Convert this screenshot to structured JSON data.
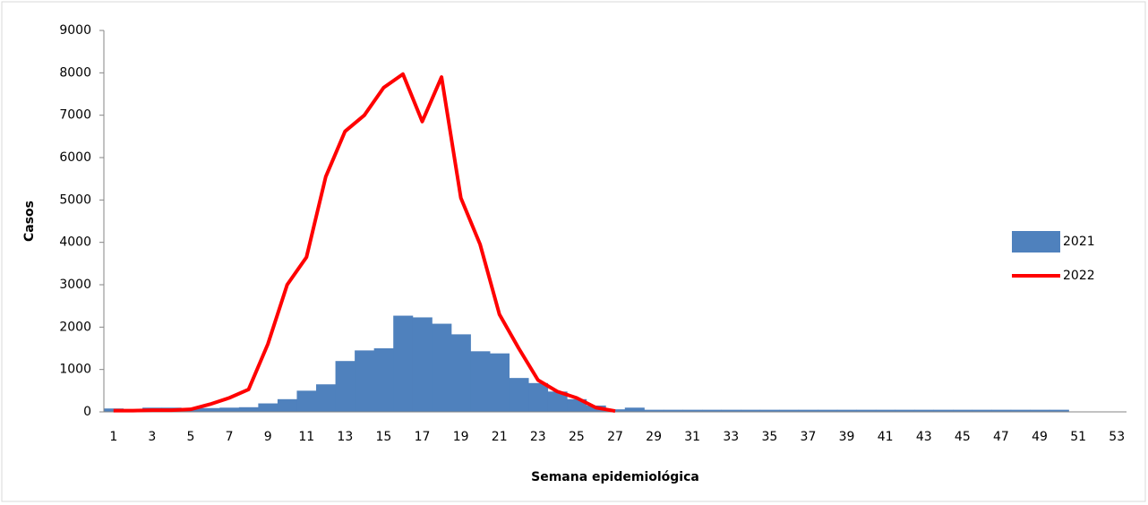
{
  "chart_data": {
    "type": "bar_line",
    "x_label": "Semana epidemiológica",
    "y_label": "Casos",
    "categories": [
      "1",
      null,
      "3",
      null,
      "5",
      null,
      "7",
      null,
      "9",
      null,
      "11",
      null,
      "13",
      null,
      "15",
      null,
      "17",
      null,
      "19",
      null,
      "21",
      null,
      "23",
      null,
      "25",
      null,
      "27",
      null,
      "29",
      null,
      "31",
      null,
      "33",
      null,
      "35",
      null,
      "37",
      null,
      "39",
      null,
      "41",
      null,
      "43",
      null,
      "45",
      null,
      "47",
      null,
      "49",
      null,
      "51",
      null,
      "53"
    ],
    "series": [
      {
        "name": "2021",
        "type": "bar",
        "color": "#4f81bd",
        "values": [
          80,
          50,
          100,
          100,
          80,
          90,
          100,
          110,
          200,
          300,
          500,
          650,
          1200,
          1450,
          1500,
          2270,
          2230,
          2080,
          1830,
          1430,
          1380,
          800,
          680,
          480,
          300,
          150,
          60,
          100,
          50,
          50,
          50,
          50,
          50,
          50,
          50,
          50,
          50,
          50,
          50,
          50,
          50,
          50,
          50,
          50,
          50,
          50,
          50,
          50,
          50,
          50,
          0,
          0,
          0
        ]
      },
      {
        "name": "2022",
        "type": "line",
        "color": "#ff0000",
        "values": [
          30,
          30,
          40,
          40,
          60,
          180,
          330,
          530,
          1600,
          3000,
          3650,
          5550,
          6620,
          7000,
          7650,
          7970,
          6850,
          7900,
          5050,
          3950,
          2300,
          1500,
          750,
          480,
          330,
          100,
          20,
          null,
          null,
          null,
          null,
          null,
          null,
          null,
          null,
          null,
          null,
          null,
          null,
          null,
          null,
          null,
          null,
          null,
          null,
          null,
          null,
          null,
          null,
          null,
          null,
          null,
          null
        ]
      }
    ],
    "ylim": [
      0,
      9000
    ],
    "yticks": [
      0,
      1000,
      2000,
      3000,
      4000,
      5000,
      6000,
      7000,
      8000,
      9000
    ],
    "grid": false,
    "legend": "right"
  }
}
